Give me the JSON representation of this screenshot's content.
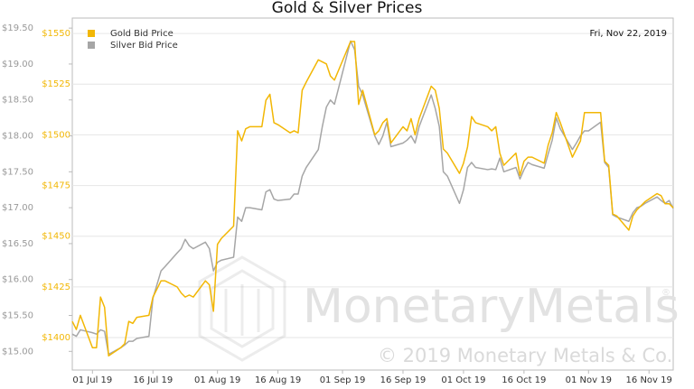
{
  "chart_data": {
    "type": "line",
    "title": "Gold & Silver Prices",
    "date_label": "Fri, Nov 22, 2019",
    "watermark": "MonetaryMetals",
    "registered": "®",
    "copyright": "© 2019 Monetary Metals & Co.",
    "grid": true,
    "legend": "top-left",
    "x": [
      "2019-06-26",
      "2019-06-27",
      "2019-06-28",
      "2019-07-01",
      "2019-07-02",
      "2019-07-03",
      "2019-07-04",
      "2019-07-05",
      "2019-07-08",
      "2019-07-09",
      "2019-07-10",
      "2019-07-11",
      "2019-07-12",
      "2019-07-15",
      "2019-07-16",
      "2019-07-18",
      "2019-07-19",
      "2019-07-22",
      "2019-07-23",
      "2019-07-24",
      "2019-07-25",
      "2019-07-26",
      "2019-07-29",
      "2019-07-30",
      "2019-07-31",
      "2019-08-01",
      "2019-08-02",
      "2019-08-05",
      "2019-08-06",
      "2019-08-07",
      "2019-08-08",
      "2019-08-09",
      "2019-08-12",
      "2019-08-13",
      "2019-08-14",
      "2019-08-15",
      "2019-08-16",
      "2019-08-19",
      "2019-08-20",
      "2019-08-21",
      "2019-08-22",
      "2019-08-23",
      "2019-08-26",
      "2019-08-27",
      "2019-08-28",
      "2019-08-29",
      "2019-08-30",
      "2019-09-03",
      "2019-09-04",
      "2019-09-05",
      "2019-09-06",
      "2019-09-09",
      "2019-09-10",
      "2019-09-11",
      "2019-09-12",
      "2019-09-13",
      "2019-09-16",
      "2019-09-17",
      "2019-09-18",
      "2019-09-19",
      "2019-09-20",
      "2019-09-23",
      "2019-09-24",
      "2019-09-25",
      "2019-09-26",
      "2019-09-27",
      "2019-09-30",
      "2019-10-01",
      "2019-10-02",
      "2019-10-03",
      "2019-10-04",
      "2019-10-07",
      "2019-10-08",
      "2019-10-09",
      "2019-10-10",
      "2019-10-11",
      "2019-10-14",
      "2019-10-15",
      "2019-10-16",
      "2019-10-17",
      "2019-10-18",
      "2019-10-21",
      "2019-10-22",
      "2019-10-23",
      "2019-10-24",
      "2019-10-25",
      "2019-10-28",
      "2019-10-29",
      "2019-10-30",
      "2019-10-31",
      "2019-11-01",
      "2019-11-04",
      "2019-11-05",
      "2019-11-06",
      "2019-11-07",
      "2019-11-08",
      "2019-11-11",
      "2019-11-12",
      "2019-11-13",
      "2019-11-14",
      "2019-11-15",
      "2019-11-18",
      "2019-11-19",
      "2019-11-20",
      "2019-11-21",
      "2019-11-22"
    ],
    "xlim": [
      "2019-06-26",
      "2019-11-22"
    ],
    "xticks": [
      {
        "value": "2019-07-01",
        "label": "01 Jul 19"
      },
      {
        "value": "2019-07-16",
        "label": "16 Jul 19"
      },
      {
        "value": "2019-08-01",
        "label": "01 Aug 19"
      },
      {
        "value": "2019-08-16",
        "label": "16 Aug 19"
      },
      {
        "value": "2019-09-01",
        "label": "01 Sep 19"
      },
      {
        "value": "2019-09-16",
        "label": "16 Sep 19"
      },
      {
        "value": "2019-10-01",
        "label": "01 Oct 19"
      },
      {
        "value": "2019-10-16",
        "label": "16 Oct 19"
      },
      {
        "value": "2019-11-01",
        "label": "01 Nov 19"
      },
      {
        "value": "2019-11-16",
        "label": "16 Nov 19"
      }
    ],
    "ylim": [
      14.74,
      19.64
    ],
    "yticks": [
      {
        "value": 15,
        "label": "$15.00"
      },
      {
        "value": 15.5,
        "label": "$15.50"
      },
      {
        "value": 16,
        "label": "$16.00"
      },
      {
        "value": 16.5,
        "label": "$16.50"
      },
      {
        "value": 17,
        "label": "$17.00"
      },
      {
        "value": 17.5,
        "label": "$17.50"
      },
      {
        "value": 18,
        "label": "$18.00"
      },
      {
        "value": 18.5,
        "label": "$18.50"
      },
      {
        "value": 19,
        "label": "$19.00"
      },
      {
        "value": 19.5,
        "label": "$19.50"
      }
    ],
    "y2lim": [
      1384,
      1557.6
    ],
    "y2ticks": [
      {
        "value": 1400,
        "label": "$1400"
      },
      {
        "value": 1425,
        "label": "$1425"
      },
      {
        "value": 1450,
        "label": "$1450"
      },
      {
        "value": 1475,
        "label": "$1475"
      },
      {
        "value": 1500,
        "label": "$1500"
      },
      {
        "value": 1525,
        "label": "$1525"
      },
      {
        "value": 1550,
        "label": "$1550"
      }
    ],
    "series": [
      {
        "name": "Gold Bid Price",
        "color": "#f2b705",
        "axis": "y2",
        "values": [
          1408,
          1404,
          1411,
          1395,
          1395,
          1420,
          1415,
          1391,
          1395,
          1397,
          1408,
          1407,
          1410,
          1411,
          1420,
          1428,
          1428,
          1425,
          1422,
          1420,
          1421,
          1420,
          1428,
          1426,
          1413,
          1446,
          1449,
          1455,
          1502,
          1497,
          1503,
          1504,
          1504,
          1517,
          1520,
          1506,
          1505,
          1501,
          1502,
          1501,
          1522,
          1526,
          1537,
          1536,
          1535,
          1529,
          1527,
          1546,
          1546,
          1515,
          1522,
          1500,
          1502,
          1506,
          1508,
          1496,
          1504,
          1502,
          1508,
          1500,
          1508,
          1524,
          1522,
          1513,
          1493,
          1491,
          1481,
          1486,
          1494,
          1509,
          1506,
          1504,
          1502,
          1504,
          1491,
          1485,
          1491,
          1480,
          1487,
          1489,
          1489,
          1486,
          1495,
          1501,
          1511,
          1506,
          1489,
          1493,
          1497,
          1511,
          1511,
          1511,
          1487,
          1485,
          1461,
          1460,
          1453,
          1460,
          1463,
          1465,
          1467,
          1471,
          1470,
          1466,
          1466,
          1464
        ]
      },
      {
        "name": "Silver Bid Price",
        "color": "#a6a6a6",
        "values": [
          15.24,
          15.21,
          15.3,
          15.26,
          15.24,
          15.3,
          15.28,
          14.96,
          15.05,
          15.09,
          15.14,
          15.14,
          15.18,
          15.21,
          15.74,
          16.12,
          16.18,
          16.37,
          16.43,
          16.56,
          16.47,
          16.43,
          16.52,
          16.43,
          16.12,
          16.24,
          16.27,
          16.31,
          16.87,
          16.81,
          17.0,
          17.0,
          16.97,
          17.22,
          17.25,
          17.12,
          17.1,
          17.12,
          17.19,
          17.19,
          17.44,
          17.56,
          17.81,
          18.13,
          18.4,
          18.5,
          18.44,
          19.32,
          19.2,
          18.69,
          18.57,
          18.0,
          17.88,
          18.0,
          18.19,
          17.85,
          17.9,
          17.94,
          18.0,
          17.9,
          18.13,
          18.57,
          18.38,
          18.13,
          17.5,
          17.44,
          17.06,
          17.25,
          17.56,
          17.63,
          17.56,
          17.53,
          17.54,
          17.53,
          17.69,
          17.5,
          17.56,
          17.4,
          17.53,
          17.63,
          17.6,
          17.55,
          17.75,
          17.94,
          18.25,
          18.1,
          17.81,
          17.9,
          18.0,
          18.07,
          18.07,
          18.19,
          17.63,
          17.56,
          16.9,
          16.87,
          16.81,
          16.93,
          17.0,
          17.02,
          17.06,
          17.15,
          17.1,
          17.06,
          17.1,
          16.99
        ]
      }
    ]
  }
}
